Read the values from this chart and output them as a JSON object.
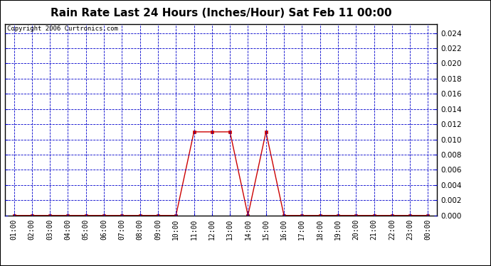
{
  "title": "Rain Rate Last 24 Hours (Inches/Hour) Sat Feb 11 00:00",
  "copyright": "Copyright 2006 Curtronics.com",
  "x_labels": [
    "01:00",
    "02:00",
    "03:00",
    "04:00",
    "05:00",
    "06:00",
    "07:00",
    "08:00",
    "09:00",
    "10:00",
    "11:00",
    "12:00",
    "13:00",
    "14:00",
    "15:00",
    "16:00",
    "17:00",
    "18:00",
    "19:00",
    "20:00",
    "21:00",
    "22:00",
    "23:00",
    "00:00"
  ],
  "x_values": [
    1,
    2,
    3,
    4,
    5,
    6,
    7,
    8,
    9,
    10,
    11,
    12,
    13,
    14,
    15,
    16,
    17,
    18,
    19,
    20,
    21,
    22,
    23,
    24
  ],
  "y_values": [
    0,
    0,
    0,
    0,
    0,
    0,
    0,
    0,
    0,
    0,
    0.011,
    0.011,
    0.011,
    0,
    0.011,
    0,
    0,
    0,
    0,
    0,
    0,
    0,
    0,
    0
  ],
  "ylim": [
    0,
    0.0252
  ],
  "yticks": [
    0.0,
    0.002,
    0.004,
    0.006,
    0.008,
    0.01,
    0.012,
    0.014,
    0.016,
    0.018,
    0.02,
    0.022,
    0.024
  ],
  "line_color": "#cc0000",
  "grid_color": "#0000cc",
  "bg_color": "#ffffff",
  "title_color": "#000000",
  "title_fontsize": 11,
  "copyright_fontsize": 6.5,
  "tick_fontsize": 7.0,
  "ytick_fontsize": 7.5
}
